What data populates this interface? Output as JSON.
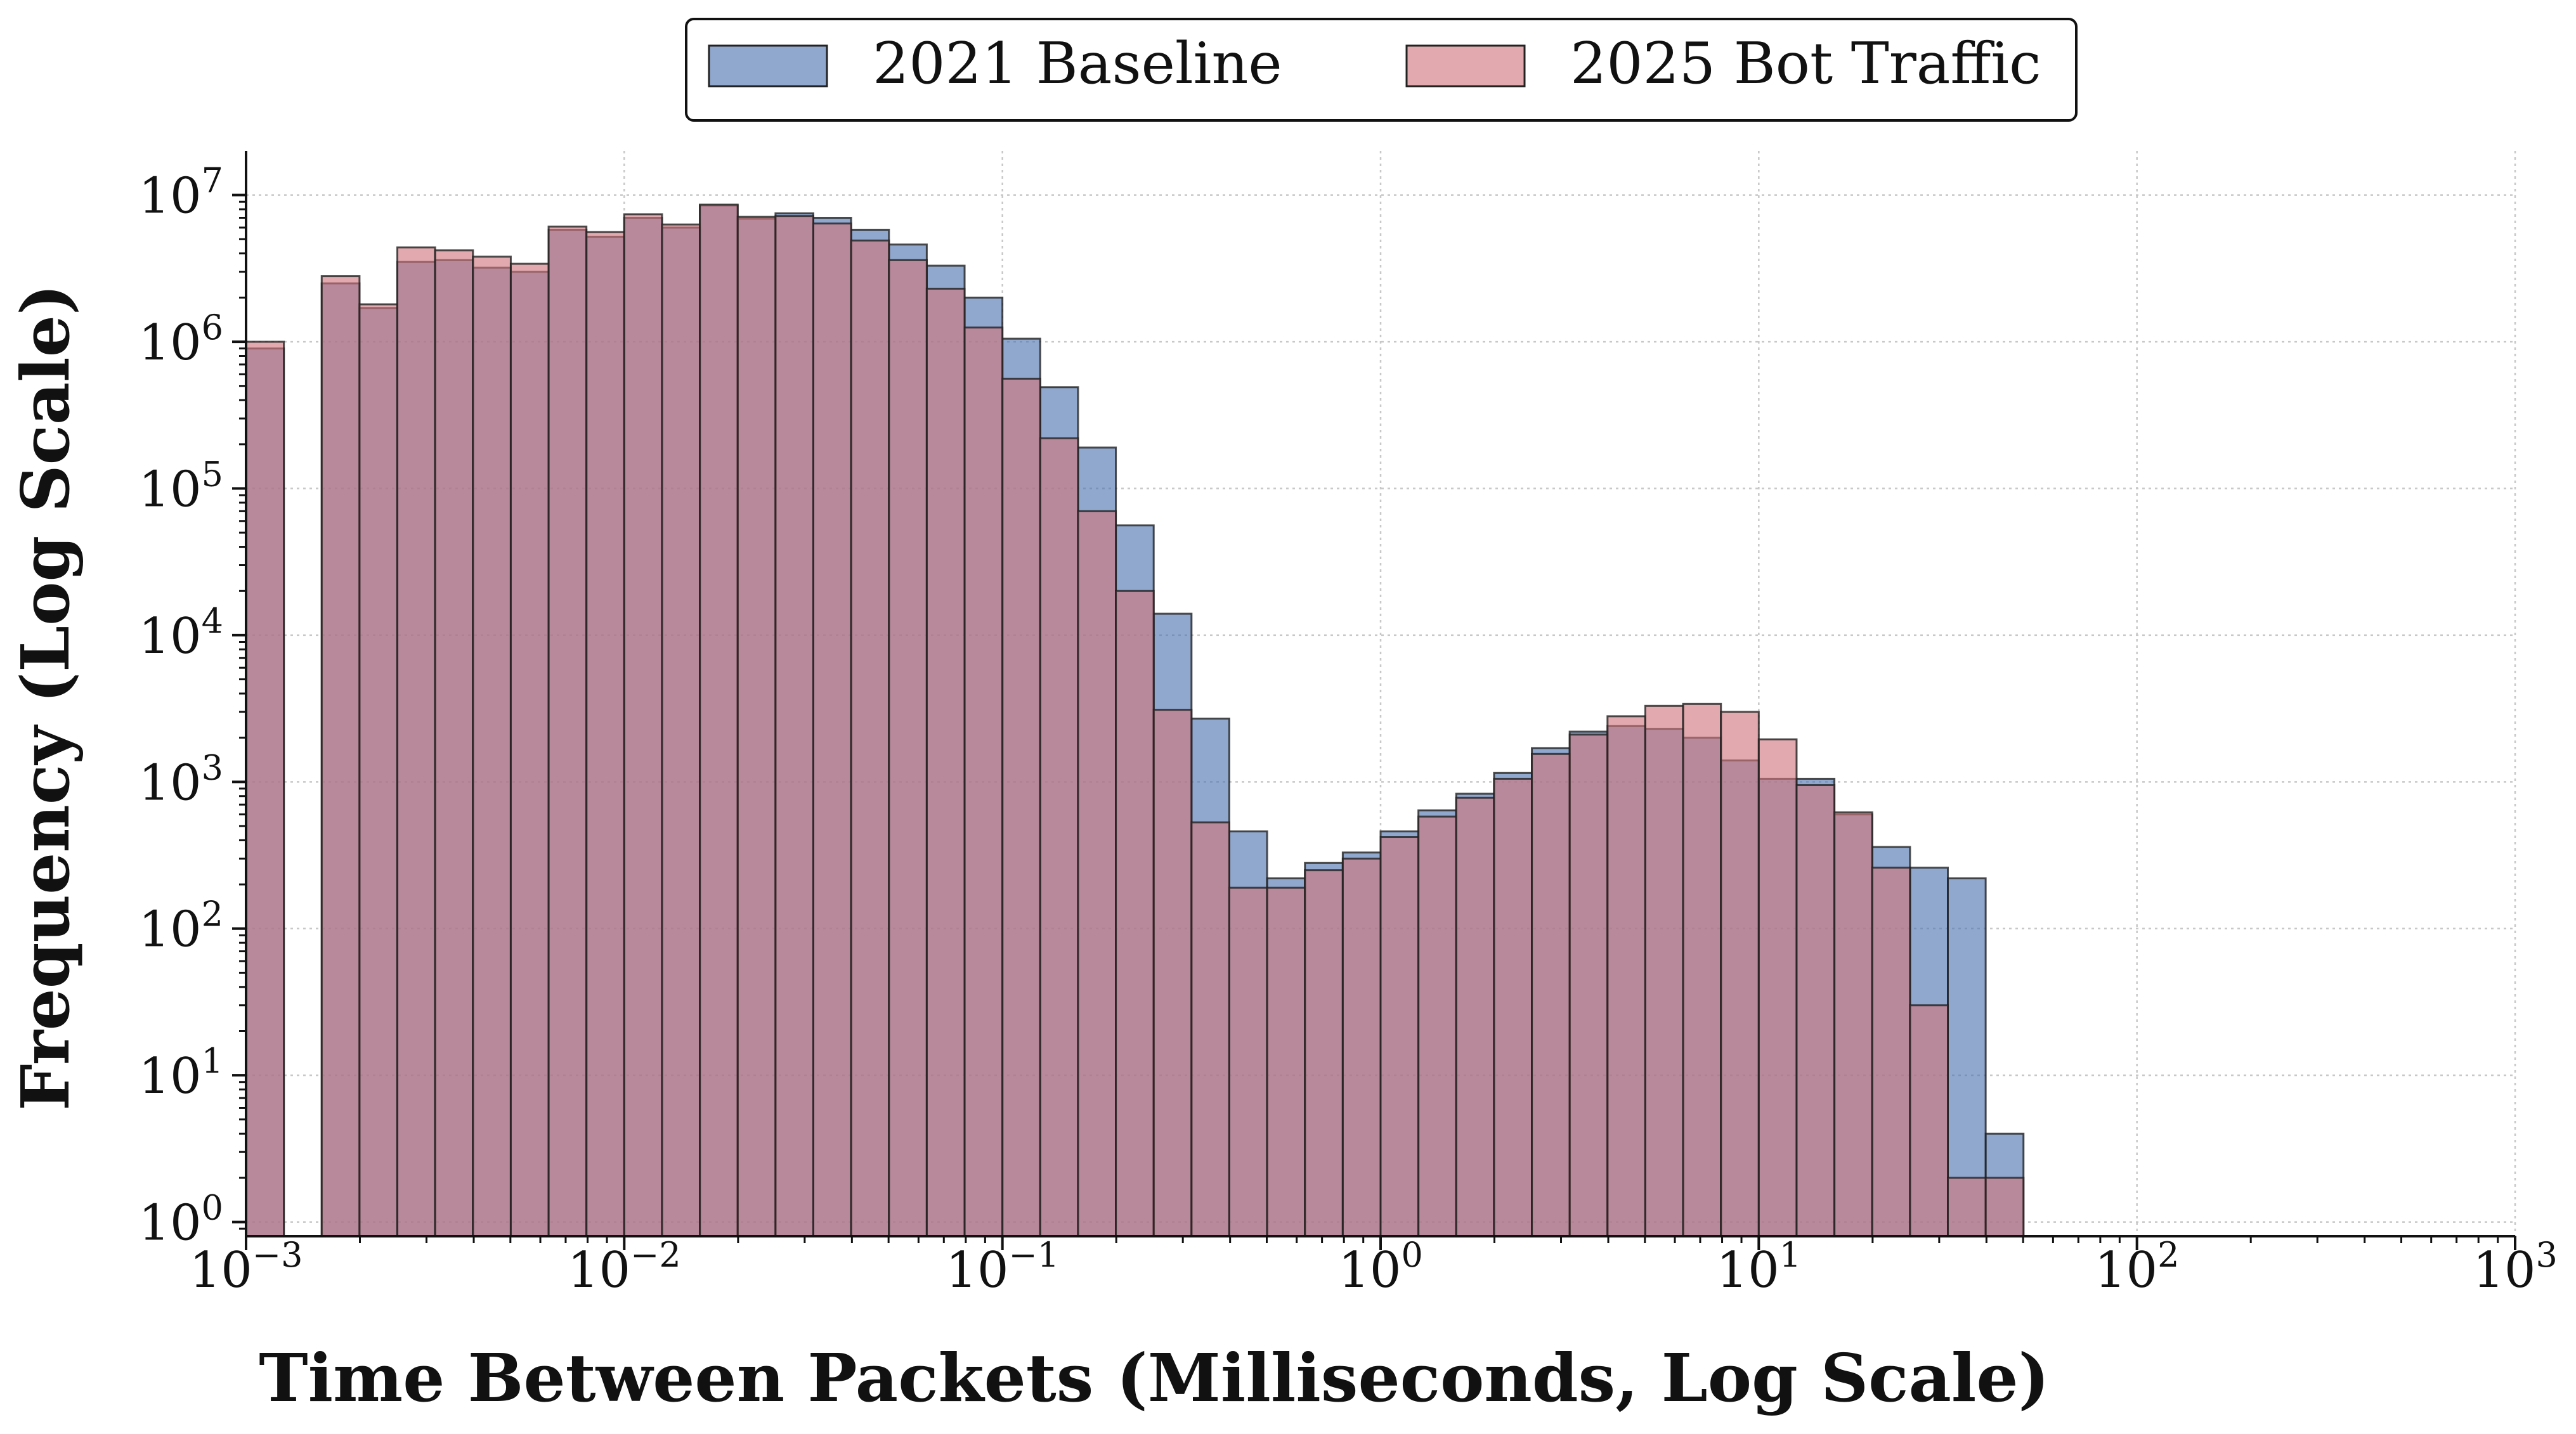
{
  "chart_data": {
    "type": "bar",
    "xlabel": "Time Between Packets (Milliseconds, Log Scale)",
    "ylabel": "Frequency (Log Scale)",
    "x_scale": "log",
    "y_scale": "log",
    "xlim": [
      0.001,
      1000
    ],
    "ylim": [
      0.8,
      20000000
    ],
    "x_ticks": [
      {
        "base": "10",
        "exp": "−3"
      },
      {
        "base": "10",
        "exp": "−2"
      },
      {
        "base": "10",
        "exp": "−1"
      },
      {
        "base": "10",
        "exp": "0"
      },
      {
        "base": "10",
        "exp": "1"
      },
      {
        "base": "10",
        "exp": "2"
      },
      {
        "base": "10",
        "exp": "3"
      }
    ],
    "y_ticks": [
      {
        "base": "10",
        "exp": "0"
      },
      {
        "base": "10",
        "exp": "1"
      },
      {
        "base": "10",
        "exp": "2"
      },
      {
        "base": "10",
        "exp": "3"
      },
      {
        "base": "10",
        "exp": "4"
      },
      {
        "base": "10",
        "exp": "5"
      },
      {
        "base": "10",
        "exp": "6"
      },
      {
        "base": "10",
        "exp": "7"
      }
    ],
    "grid": true,
    "legend_position": "top-center",
    "bin_edges_log10": [
      -3,
      -2.9,
      -2.8,
      -2.7,
      -2.6,
      -2.5,
      -2.4,
      -2.3,
      -2.2,
      -2.1,
      -2,
      -1.9,
      -1.8,
      -1.7,
      -1.6,
      -1.5,
      -1.4,
      -1.3,
      -1.2,
      -1.1,
      -1,
      -0.9,
      -0.8,
      -0.7,
      -0.6,
      -0.5,
      -0.4,
      -0.3,
      -0.2,
      -0.1,
      0,
      0.1,
      0.2,
      0.3,
      0.4,
      0.5,
      0.6,
      0.7,
      0.8,
      0.9,
      1,
      1.1,
      1.2,
      1.3,
      1.4,
      1.5,
      1.6,
      1.7,
      1.8
    ],
    "series": [
      {
        "name": "2021 Baseline",
        "color": "#4c72b0",
        "values": [
          900000,
          0,
          2500000,
          1700000,
          3500000,
          3600000,
          3200000,
          3000000,
          5800000,
          5200000,
          7000000,
          6000000,
          8500000,
          6900000,
          7500000,
          7000000,
          5800000,
          4600000,
          3300000,
          2000000,
          1050000,
          490000,
          190000,
          56000,
          14000,
          2700,
          460,
          220,
          280,
          330,
          460,
          640,
          830,
          1150,
          1700,
          2200,
          2400,
          2300,
          2000,
          1400,
          1050,
          1050,
          600,
          360,
          260,
          220,
          4,
          0
        ]
      },
      {
        "name": "2025 Bot Traffic",
        "color": "#d1767c",
        "values": [
          1000000,
          0,
          2800000,
          1800000,
          4400000,
          4200000,
          3800000,
          3400000,
          6100000,
          5600000,
          7400000,
          6300000,
          8600000,
          7100000,
          7200000,
          6400000,
          4900000,
          3600000,
          2300000,
          1250000,
          560000,
          220000,
          70000,
          20000,
          3100,
          530,
          190,
          190,
          250,
          300,
          420,
          580,
          780,
          1050,
          1550,
          2100,
          2800,
          3300,
          3400,
          3000,
          1950,
          950,
          620,
          260,
          30,
          2,
          2,
          0
        ]
      }
    ]
  }
}
